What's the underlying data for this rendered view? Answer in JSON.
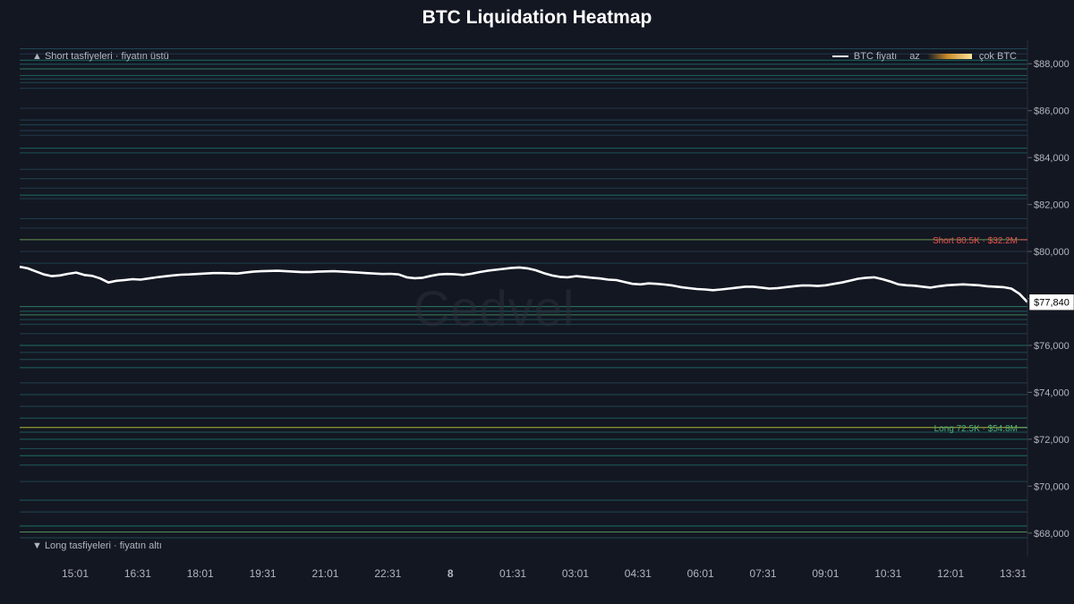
{
  "title": "BTC Liquidation Heatmap",
  "annotations": {
    "top_label": "▲ Short tasfiyeleri · fiyatın üstü",
    "bottom_label": "▼ Long tasfiyeleri · fiyatın altı",
    "short_marker": "Short 80.5K · $32.2M",
    "long_marker": "Long 72.5K · $54.8M",
    "current_price": "$77,840"
  },
  "legend": {
    "price_label": "BTC fiyatı",
    "low_label": "az",
    "high_label": "çok BTC"
  },
  "watermark": "Cedvel",
  "colors": {
    "background": "#131722",
    "price_line": "#ffffff",
    "short_marker": "#ef5350",
    "long_marker": "#4caf7a",
    "axis_text": "#b2b5be",
    "heat_low": "#3b1f5f",
    "heat_mid": "#1f9e89",
    "heat_high": "#fde725"
  },
  "chart_data": {
    "type": "heatmap",
    "title": "BTC Liquidation Heatmap",
    "y_range": [
      67000,
      89000
    ],
    "y_ticks": [
      68000,
      70000,
      72000,
      74000,
      76000,
      78000,
      80000,
      82000,
      84000,
      86000,
      88000
    ],
    "y_tick_labels": [
      "$68,000",
      "$70,000",
      "$72,000",
      "$74,000",
      "$76,000",
      "$78,000",
      "$80,000",
      "$82,000",
      "$84,000",
      "$86,000",
      "$88,000"
    ],
    "x_tick_labels": [
      "15:01",
      "16:31",
      "18:01",
      "19:31",
      "21:01",
      "22:31",
      "8",
      "01:31",
      "03:01",
      "04:31",
      "06:01",
      "07:31",
      "09:01",
      "10:31",
      "12:01",
      "13:31"
    ],
    "grid": false,
    "legend_position": "top-right",
    "price_series": {
      "name": "BTC fiyatı",
      "values": [
        79350,
        79280,
        79150,
        79020,
        78950,
        78980,
        79050,
        79100,
        79000,
        78960,
        78850,
        78680,
        78750,
        78780,
        78820,
        78800,
        78850,
        78900,
        78940,
        78980,
        79010,
        79020,
        79040,
        79060,
        79080,
        79080,
        79070,
        79060,
        79100,
        79140,
        79160,
        79170,
        79180,
        79160,
        79140,
        79120,
        79120,
        79140,
        79150,
        79160,
        79140,
        79120,
        79100,
        79080,
        79060,
        79040,
        79050,
        79020,
        78900,
        78860,
        78880,
        78960,
        79020,
        79040,
        79030,
        79000,
        79050,
        79120,
        79180,
        79220,
        79260,
        79300,
        79320,
        79280,
        79200,
        79080,
        78980,
        78920,
        78900,
        78950,
        78920,
        78880,
        78850,
        78800,
        78780,
        78700,
        78620,
        78600,
        78640,
        78620,
        78590,
        78550,
        78480,
        78440,
        78400,
        78380,
        78350,
        78380,
        78420,
        78460,
        78500,
        78500,
        78460,
        78420,
        78440,
        78480,
        78520,
        78550,
        78550,
        78530,
        78560,
        78620,
        78680,
        78760,
        78840,
        78880,
        78900,
        78820,
        78720,
        78600,
        78560,
        78540,
        78500,
        78460,
        78520,
        78560,
        78580,
        78600,
        78580,
        78560,
        78520,
        78500,
        78480,
        78420,
        78200,
        77840
      ]
    },
    "liquidation_levels": [
      {
        "price": 88640,
        "intensity": 0.35
      },
      {
        "price": 88420,
        "intensity": 0.25
      },
      {
        "price": 88150,
        "intensity": 0.55
      },
      {
        "price": 87980,
        "intensity": 0.45
      },
      {
        "price": 87780,
        "intensity": 0.6
      },
      {
        "price": 87500,
        "intensity": 0.5
      },
      {
        "price": 87350,
        "intensity": 0.4
      },
      {
        "price": 87200,
        "intensity": 0.35
      },
      {
        "price": 86950,
        "intensity": 0.3
      },
      {
        "price": 86100,
        "intensity": 0.25
      },
      {
        "price": 85600,
        "intensity": 0.3
      },
      {
        "price": 85400,
        "intensity": 0.35
      },
      {
        "price": 85150,
        "intensity": 0.3
      },
      {
        "price": 84950,
        "intensity": 0.25
      },
      {
        "price": 84400,
        "intensity": 0.5
      },
      {
        "price": 84200,
        "intensity": 0.4
      },
      {
        "price": 83500,
        "intensity": 0.3
      },
      {
        "price": 83100,
        "intensity": 0.35
      },
      {
        "price": 82700,
        "intensity": 0.3
      },
      {
        "price": 82400,
        "intensity": 0.55
      },
      {
        "price": 82250,
        "intensity": 0.3
      },
      {
        "price": 81400,
        "intensity": 0.3
      },
      {
        "price": 81000,
        "intensity": 0.25
      },
      {
        "price": 80500,
        "intensity": 0.75
      },
      {
        "price": 80000,
        "intensity": 0.25
      },
      {
        "price": 79500,
        "intensity": 0.3
      },
      {
        "price": 77650,
        "intensity": 0.6
      },
      {
        "price": 77450,
        "intensity": 0.5
      },
      {
        "price": 77300,
        "intensity": 0.65
      },
      {
        "price": 77100,
        "intensity": 0.4
      },
      {
        "price": 76900,
        "intensity": 0.35
      },
      {
        "price": 76500,
        "intensity": 0.3
      },
      {
        "price": 76000,
        "intensity": 0.55
      },
      {
        "price": 75700,
        "intensity": 0.35
      },
      {
        "price": 75400,
        "intensity": 0.4
      },
      {
        "price": 75050,
        "intensity": 0.5
      },
      {
        "price": 74400,
        "intensity": 0.3
      },
      {
        "price": 73900,
        "intensity": 0.4
      },
      {
        "price": 73400,
        "intensity": 0.35
      },
      {
        "price": 72900,
        "intensity": 0.45
      },
      {
        "price": 72500,
        "intensity": 0.9
      },
      {
        "price": 72300,
        "intensity": 0.45
      },
      {
        "price": 72000,
        "intensity": 0.5
      },
      {
        "price": 71600,
        "intensity": 0.4
      },
      {
        "price": 71300,
        "intensity": 0.55
      },
      {
        "price": 70900,
        "intensity": 0.45
      },
      {
        "price": 70200,
        "intensity": 0.3
      },
      {
        "price": 69400,
        "intensity": 0.45
      },
      {
        "price": 68900,
        "intensity": 0.35
      },
      {
        "price": 68300,
        "intensity": 0.55
      },
      {
        "price": 68050,
        "intensity": 0.7
      },
      {
        "price": 67800,
        "intensity": 0.35
      }
    ]
  }
}
